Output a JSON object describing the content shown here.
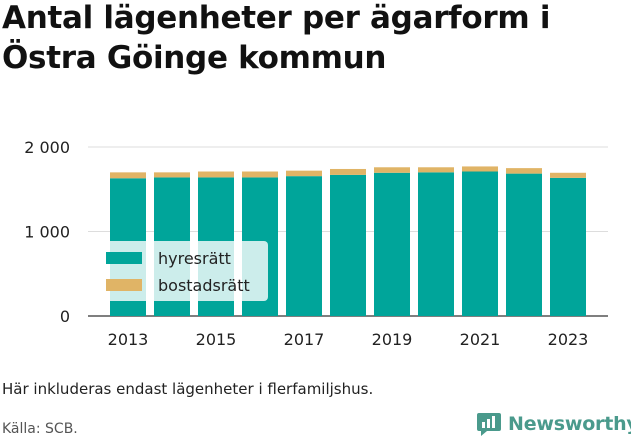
{
  "title_line1": "Antal lägenheter per ägarform i",
  "title_line2": "Östra Göinge kommun",
  "note": "Här inkluderas endast lägenheter i flerfamiljshus.",
  "source": "Källa: SCB.",
  "brand": "Newsworthy",
  "colors": {
    "hyresratt": "#00a59a",
    "bostadsratt": "#e0b466",
    "grid": "#dddddd",
    "text": "#222222",
    "brand": "#4a9a8c"
  },
  "chart_data": {
    "type": "bar",
    "stacked": true,
    "categories": [
      "2013",
      "2014",
      "2015",
      "2016",
      "2017",
      "2018",
      "2019",
      "2020",
      "2021",
      "2022",
      "2023"
    ],
    "x_tick_labels": [
      "2013",
      "2015",
      "2017",
      "2019",
      "2021",
      "2023"
    ],
    "series": [
      {
        "name": "hyresrätt",
        "values": [
          1630,
          1640,
          1640,
          1640,
          1655,
          1670,
          1695,
          1700,
          1710,
          1685,
          1635
        ]
      },
      {
        "name": "bostadsrätt",
        "values": [
          70,
          60,
          70,
          70,
          65,
          70,
          65,
          60,
          60,
          65,
          60
        ]
      }
    ],
    "ylim": [
      0,
      2000
    ],
    "y_ticks": [
      0,
      1000,
      2000
    ],
    "y_tick_labels": [
      "0",
      "1 000",
      "2 000"
    ],
    "xlabel": "",
    "ylabel": "",
    "grid": true,
    "legend_position": "bottom-left"
  }
}
